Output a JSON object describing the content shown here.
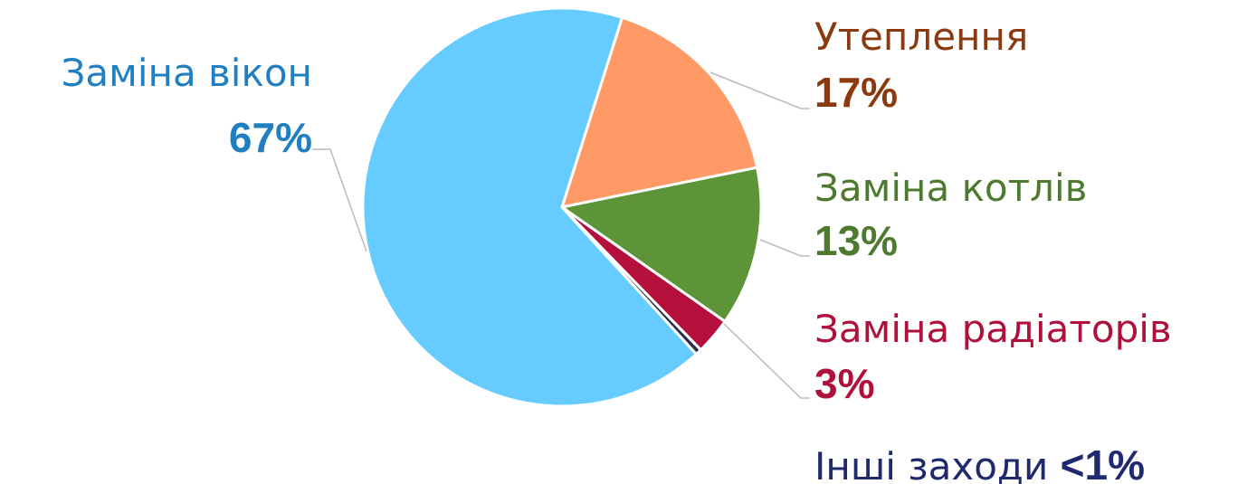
{
  "chart_data": {
    "type": "pie",
    "categories": [
      "Утеплення",
      "Заміна котлів",
      "Заміна радіаторів",
      "Інші заходи",
      "Заміна вікон"
    ],
    "values": [
      17,
      13,
      3,
      0.5,
      67
    ],
    "value_labels": [
      "17%",
      "13%",
      "3%",
      "<1%",
      "67%"
    ],
    "colors": [
      "#ff9966",
      "#5e9438",
      "#b5103c",
      "#2a2f4a",
      "#66ccff"
    ],
    "label_colors": [
      "#8b3a10",
      "#4e7a30",
      "#b0103c",
      "#1f2a6e",
      "#1f7fc0"
    ]
  }
}
